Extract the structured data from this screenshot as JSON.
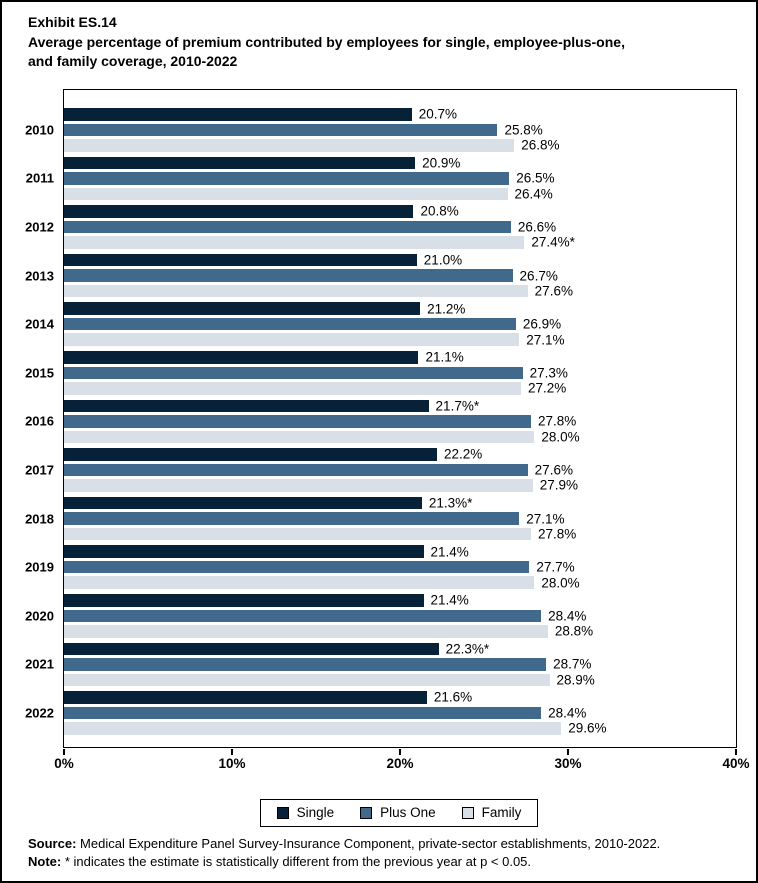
{
  "header": {
    "exhibit_label": "Exhibit ES.14",
    "title": "Average percentage of premium contributed by employees for single, employee-plus-one,\nand family coverage, 2010-2022"
  },
  "chart_data": {
    "type": "bar",
    "orientation": "horizontal",
    "title": "Average percentage of premium contributed by employees for single, employee-plus-one, and family coverage, 2010-2022",
    "categories": [
      "2010",
      "2011",
      "2012",
      "2013",
      "2014",
      "2015",
      "2016",
      "2017",
      "2018",
      "2019",
      "2020",
      "2021",
      "2022"
    ],
    "series": [
      {
        "name": "Single",
        "color": "#062138",
        "values": [
          20.7,
          20.9,
          20.8,
          21.0,
          21.2,
          21.1,
          21.7,
          22.2,
          21.3,
          21.4,
          21.4,
          22.3,
          21.6
        ],
        "labels": [
          "20.7%",
          "20.9%",
          "20.8%",
          "21.0%",
          "21.2%",
          "21.1%",
          "21.7%*",
          "22.2%",
          "21.3%*",
          "21.4%",
          "21.4%",
          "22.3%*",
          "21.6%"
        ]
      },
      {
        "name": "Plus One",
        "color": "#41698c",
        "values": [
          25.8,
          26.5,
          26.6,
          26.7,
          26.9,
          27.3,
          27.8,
          27.6,
          27.1,
          27.7,
          28.4,
          28.7,
          28.4
        ],
        "labels": [
          "25.8%",
          "26.5%",
          "26.6%",
          "26.7%",
          "26.9%",
          "27.3%",
          "27.8%",
          "27.6%",
          "27.1%",
          "27.7%",
          "28.4%",
          "28.7%",
          "28.4%"
        ]
      },
      {
        "name": "Family",
        "color": "#d8dfe7",
        "values": [
          26.8,
          26.4,
          27.4,
          27.6,
          27.1,
          27.2,
          28.0,
          27.9,
          27.8,
          28.0,
          28.8,
          28.9,
          29.6
        ],
        "labels": [
          "26.8%",
          "26.4%",
          "27.4%*",
          "27.6%",
          "27.1%",
          "27.2%",
          "28.0%",
          "27.9%",
          "27.8%",
          "28.0%",
          "28.8%",
          "28.9%",
          "29.6%"
        ]
      }
    ],
    "x_axis": {
      "min": 0,
      "max": 40,
      "tick_labels": [
        "0%",
        "10%",
        "20%",
        "30%",
        "40%"
      ]
    },
    "ylabel": "",
    "xlabel": "",
    "grid": false,
    "legend": {
      "position": "bottom",
      "entries": [
        "Single",
        "Plus One",
        "Family"
      ]
    }
  },
  "footer": {
    "source_label": "Source:",
    "source_text": "Medical Expenditure Panel Survey-Insurance Component, private-sector establishments, 2010-2022.",
    "note_label": "Note:",
    "note_text": "* indicates the estimate is statistically different from the previous year at p < 0.05."
  }
}
